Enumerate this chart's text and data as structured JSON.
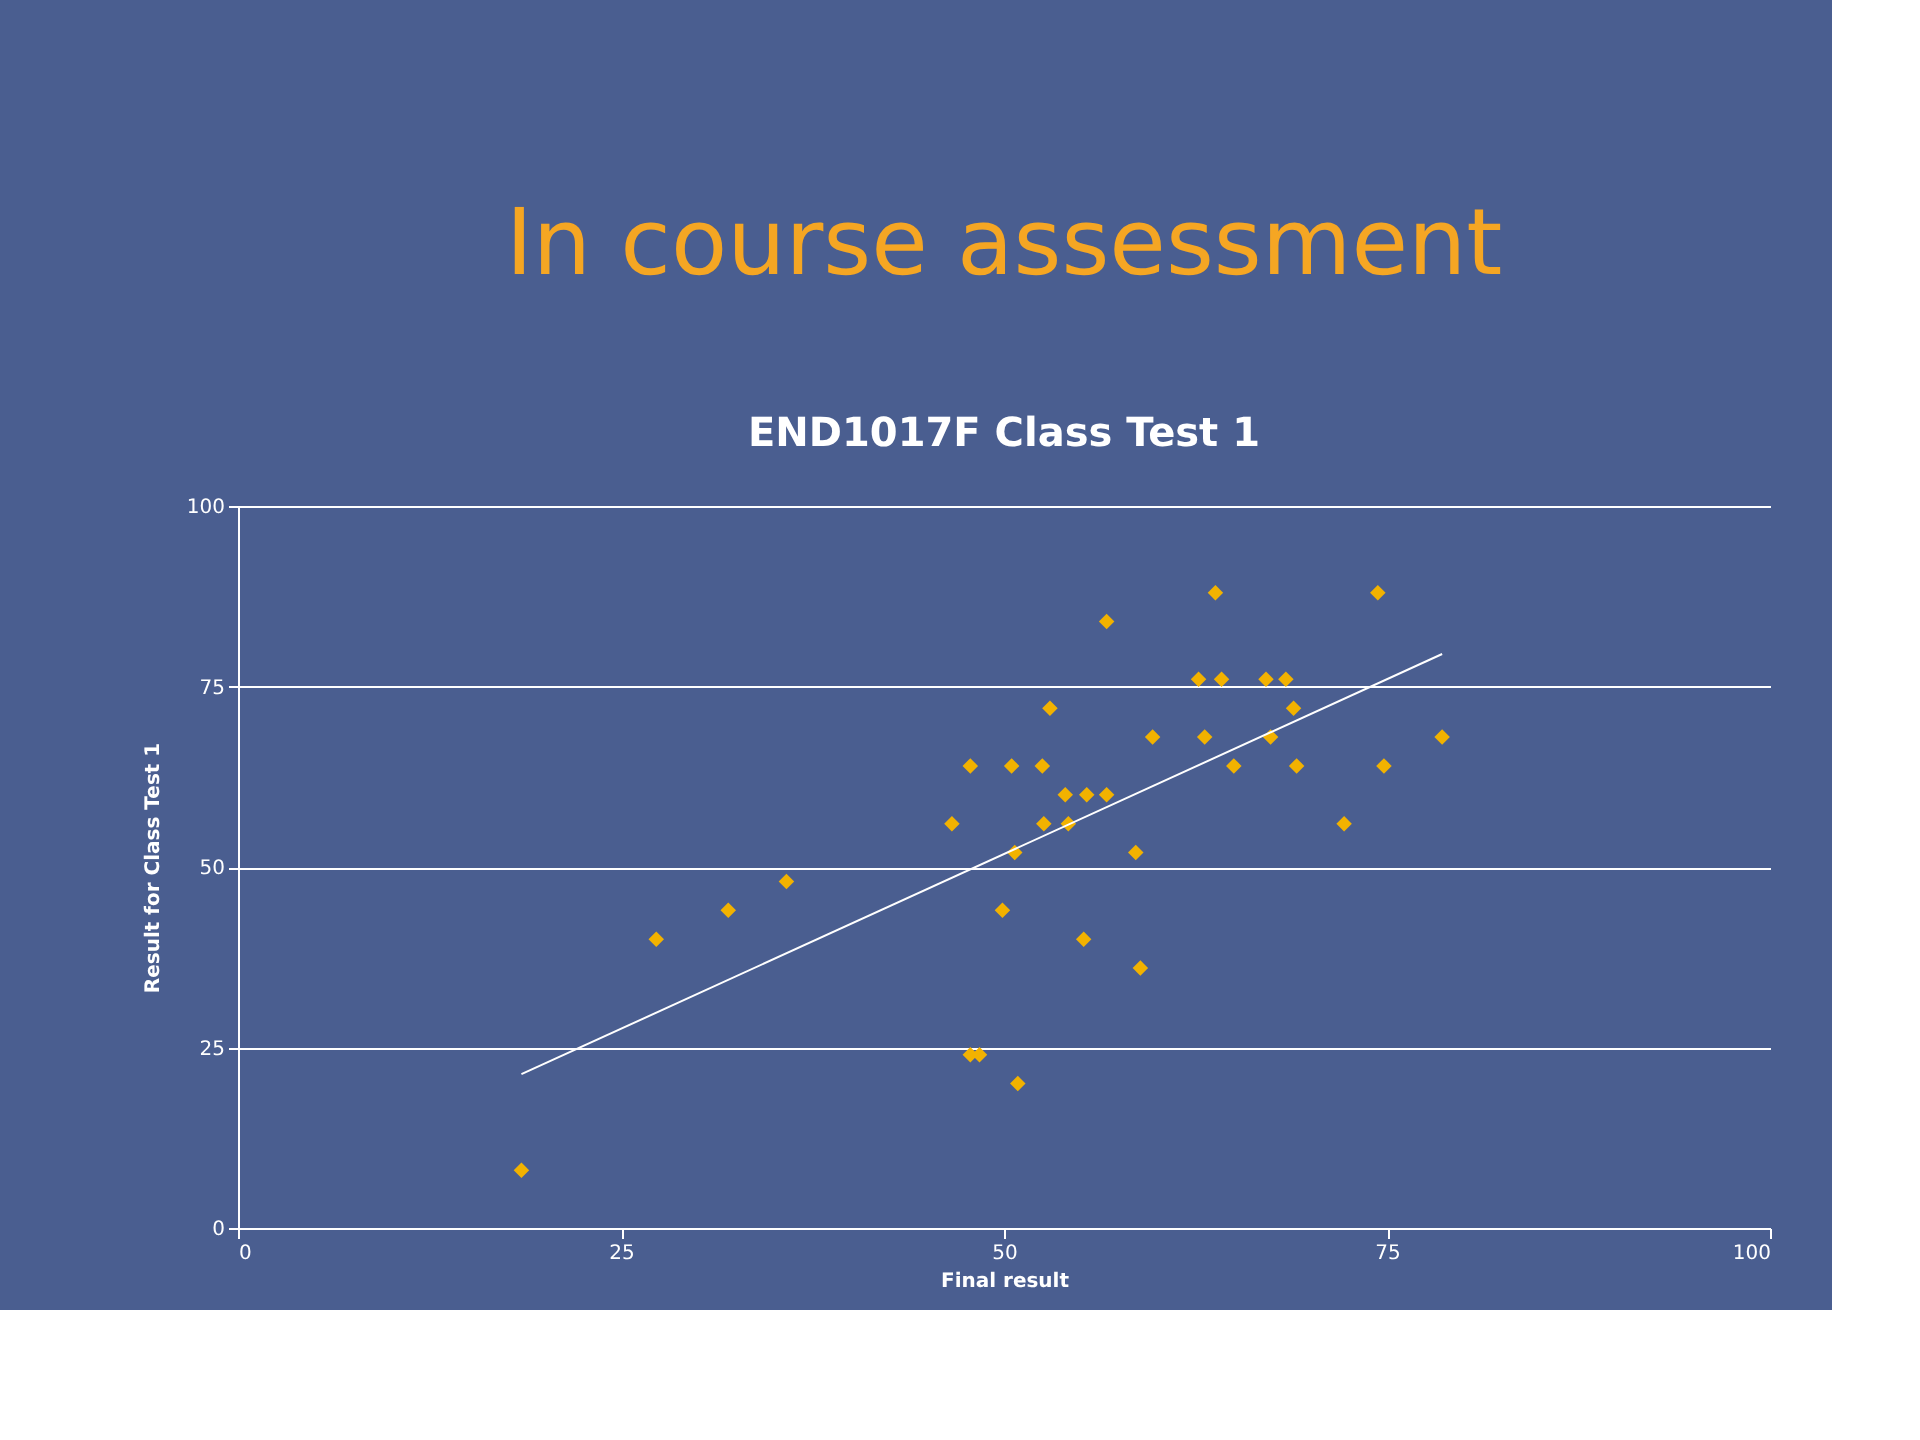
{
  "chart_data": {
    "type": "scatter",
    "title": "In course assessment",
    "subtitle": "END1017F Class Test 1",
    "xlabel": "Final result",
    "ylabel": "Result for Class Test 1",
    "xlim": [
      0,
      100
    ],
    "xticks": [
      0,
      25,
      50,
      75,
      100
    ],
    "ylim": [
      0,
      100
    ],
    "yticks": [
      0,
      25,
      50,
      75,
      100
    ],
    "grid": "y",
    "marker": "diamond",
    "series": [
      {
        "color": "#f2b200",
        "x": [
          18.5,
          27.3,
          32,
          35.8,
          46.6,
          47.8,
          47.8,
          48.4,
          49.9,
          50.5,
          50.7,
          50.9,
          52.5,
          52.6,
          53,
          54,
          54.2,
          55.2,
          55.4,
          56.7,
          56.7,
          58.6,
          58.9,
          59.7,
          62.7,
          63.1,
          63.8,
          64.2,
          65,
          67.1,
          67.4,
          68.4,
          68.9,
          69.1,
          72.2,
          74.4,
          74.8,
          78.6
        ],
        "values": [
          8,
          40,
          44,
          48,
          56,
          64,
          24,
          24,
          44,
          64,
          52,
          20,
          64,
          56,
          72,
          60,
          56,
          40,
          60,
          84,
          60,
          52,
          36,
          68,
          76,
          68,
          88,
          76,
          64,
          76,
          68,
          76,
          72,
          64,
          56,
          88,
          64,
          68
        ]
      },
      {
        "type": "line",
        "marker": "none",
        "color": "#ffffff",
        "x": [
          18.5,
          78.6
        ],
        "values": [
          21.3,
          79.5
        ]
      }
    ]
  }
}
